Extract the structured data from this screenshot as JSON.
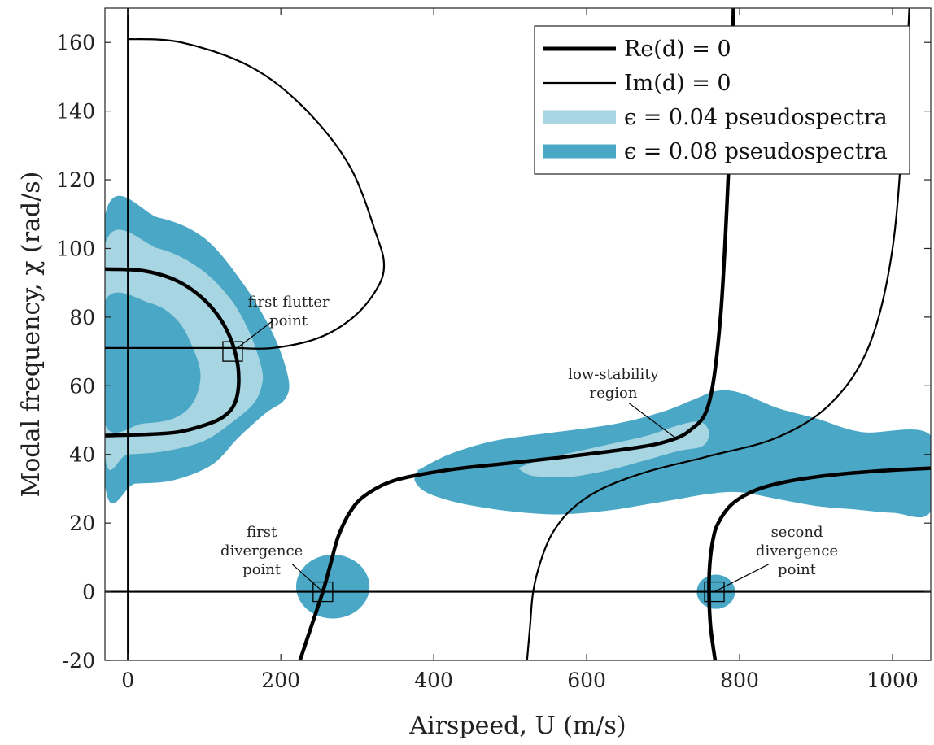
{
  "chart_data": {
    "type": "line",
    "title": "",
    "xlabel": "Airspeed, U (m/s)",
    "ylabel": "Modal frequency, χ (rad/s)",
    "xlim": [
      -30,
      1050
    ],
    "ylim": [
      -20,
      170
    ],
    "xticks": [
      0,
      200,
      400,
      600,
      800,
      1000
    ],
    "yticks": [
      -20,
      0,
      20,
      40,
      60,
      80,
      100,
      120,
      140,
      160
    ],
    "grid": false,
    "legend_position": "top-right",
    "colors": {
      "eps_0_04": "#a8d5e2",
      "eps_0_08": "#4aa8c6",
      "lines": "#000000"
    },
    "legend": [
      {
        "label": "Re(d) = 0",
        "style": "thick-line"
      },
      {
        "label": "Im(d) = 0",
        "style": "thin-line"
      },
      {
        "label": "ϵ = 0.04 pseudospectra",
        "style": "light-fill"
      },
      {
        "label": "ϵ = 0.08 pseudospectra",
        "style": "dark-fill"
      }
    ],
    "series": [
      {
        "name": "Re(d) = 0",
        "role": "re_zero",
        "x": [
          -30,
          20,
          65,
          100,
          125,
          140,
          145,
          140,
          125,
          100,
          65,
          20,
          -30
        ],
        "y": [
          94,
          93.5,
          90.5,
          85,
          78,
          70,
          62,
          55,
          51,
          48.5,
          46.5,
          45.8,
          45.5
        ]
      },
      {
        "name": "Re(d) = 0",
        "role": "re_zero",
        "x": [
          225,
          240,
          255,
          265,
          275,
          290,
          310,
          350,
          420,
          500,
          580,
          650,
          700,
          735,
          760,
          775,
          785,
          790,
          792
        ],
        "y": [
          -20,
          -10,
          0,
          8,
          16,
          23,
          28,
          32.5,
          35.5,
          37.5,
          39.5,
          41.5,
          43.5,
          47,
          55,
          80,
          120,
          150,
          170
        ]
      },
      {
        "name": "Re(d) = 0",
        "role": "re_zero",
        "x": [
          768,
          762,
          760,
          761,
          765,
          772,
          790,
          820,
          860,
          920,
          990,
          1050
        ],
        "y": [
          -20,
          -10,
          0,
          8,
          15,
          20,
          25.5,
          29.5,
          32,
          34,
          35.3,
          36
        ]
      },
      {
        "name": "Im(d) = 0",
        "role": "im_zero",
        "x": [
          -30,
          1050
        ],
        "y": [
          0,
          0
        ]
      },
      {
        "name": "Im(d) = 0",
        "role": "im_zero",
        "x": [
          0,
          0
        ],
        "y": [
          -20,
          170
        ]
      },
      {
        "name": "Im(d) = 0",
        "role": "im_zero",
        "x": [
          0,
          70,
          160,
          230,
          290,
          325,
          335,
          325,
          295,
          250,
          190,
          140,
          100,
          50,
          0,
          -30
        ],
        "y": [
          161,
          160,
          153,
          141,
          124,
          104,
          95,
          88,
          80,
          74,
          71,
          71,
          71,
          71,
          71,
          71
        ]
      },
      {
        "name": "Im(d) = 0",
        "role": "im_zero",
        "x": [
          522,
          526,
          530,
          540,
          555,
          580,
          620,
          680,
          760,
          850,
          920,
          970,
          1000,
          1015,
          1022
        ],
        "y": [
          -20,
          -10,
          0,
          9,
          17,
          24,
          30,
          35,
          39.5,
          45,
          55,
          72,
          100,
          140,
          170
        ]
      }
    ],
    "regions": [
      {
        "name": "ϵ = 0.08 pseudospectra",
        "level": 0.08,
        "x": [
          -30,
          40,
          100,
          150,
          190,
          210,
          205,
          180,
          145,
          110,
          60,
          10,
          -30
        ],
        "y": [
          109.5,
          109,
          103,
          90,
          75,
          62,
          56,
          52,
          45,
          37,
          32.5,
          31.5,
          31.5
        ]
      },
      {
        "name": "ϵ = 0.04 pseudospectra",
        "level": 0.04,
        "x": [
          -30,
          40,
          95,
          135,
          160,
          175,
          175,
          165,
          140,
          100,
          50,
          0,
          -30
        ],
        "y": [
          101,
          100,
          94,
          85,
          75,
          65,
          60,
          55,
          50,
          44,
          41,
          40,
          40
        ]
      },
      {
        "name": "ϵ = 0.08 pseudospectra",
        "level": 0.08,
        "x": [
          -30,
          30,
          65,
          85,
          95,
          85,
          60,
          20,
          -30
        ],
        "y": [
          84.5,
          84,
          79,
          71,
          63,
          55,
          50.5,
          49,
          49
        ]
      },
      {
        "name": "ϵ = 0.08 pseudospectra",
        "level": 0.08,
        "x": [
          380,
          420,
          480,
          560,
          640,
          700,
          740,
          770,
          800,
          850,
          900,
          960,
          1050,
          1050,
          1000,
          950,
          900,
          850,
          800,
          760,
          720,
          680,
          640,
          600,
          560,
          520,
          480,
          430,
          390,
          375,
          380
        ],
        "y": [
          35.5,
          40,
          44,
          46.5,
          49,
          52.5,
          56,
          58.5,
          58,
          53.5,
          50.5,
          46.5,
          45.5,
          23.5,
          23,
          24,
          25,
          27,
          29,
          28.5,
          27,
          25.5,
          24,
          23,
          22.5,
          23,
          24,
          26,
          29,
          32.5,
          35.5
        ]
      },
      {
        "name": "ϵ = 0.04 pseudospectra",
        "level": 0.04,
        "x": [
          510,
          540,
          580,
          630,
          680,
          720,
          748,
          760,
          752,
          720,
          680,
          630,
          580,
          545,
          525,
          510
        ],
        "y": [
          36,
          38.5,
          40.5,
          43,
          45.5,
          48.5,
          49.5,
          46.5,
          42.5,
          41,
          38.5,
          35.5,
          33.5,
          33.5,
          34,
          36
        ]
      },
      {
        "name": "ϵ = 0.08 pseudospectra",
        "level": 0.08,
        "type": "ellipse",
        "cx": 268,
        "cy": 1.5,
        "rx": 48,
        "ry": 9.3
      },
      {
        "name": "ϵ = 0.08 pseudospectra",
        "level": 0.08,
        "type": "ellipse",
        "cx": 769,
        "cy": 0,
        "rx": 25,
        "ry": 5
      }
    ],
    "markers": [
      {
        "x": 137,
        "y": 70,
        "shape": "square"
      },
      {
        "x": 255,
        "y": 0,
        "shape": "square"
      },
      {
        "x": 767,
        "y": 0,
        "shape": "square"
      }
    ],
    "annotations": [
      {
        "lines": [
          "first flutter",
          "point"
        ],
        "text_x": 210,
        "text_y": 83,
        "arrow_from": [
          190,
          79
        ],
        "arrow_to": [
          137,
          70
        ]
      },
      {
        "lines": [
          "first",
          "divergence",
          "point"
        ],
        "text_x": 175,
        "text_y": 16,
        "arrow_from": [
          215,
          8
        ],
        "arrow_to": [
          255,
          0
        ]
      },
      {
        "lines": [
          "second",
          "divergence",
          "point"
        ],
        "text_x": 875,
        "text_y": 16,
        "arrow_from": [
          838,
          8
        ],
        "arrow_to": [
          767,
          0
        ]
      },
      {
        "lines": [
          "low-stability",
          "region"
        ],
        "text_x": 635,
        "text_y": 62,
        "arrow_from": [
          655,
          55
        ],
        "arrow_to": [
          715,
          45
        ]
      }
    ]
  }
}
